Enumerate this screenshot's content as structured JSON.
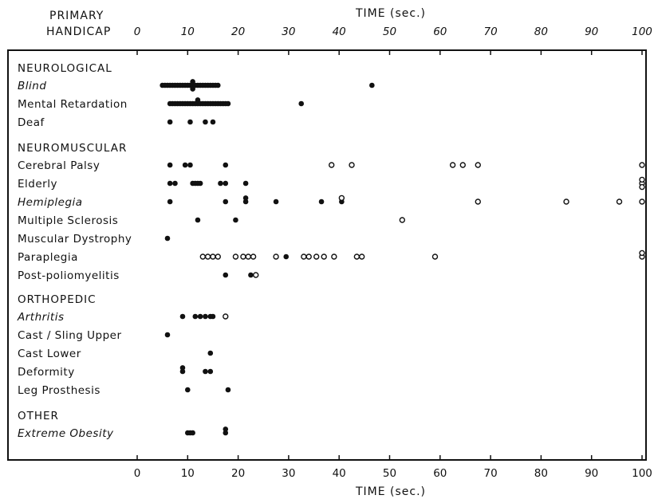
{
  "page": {
    "background": "#ffffff",
    "ink": "#111111"
  },
  "header": {
    "title_line1": "PRIMARY",
    "title_line2": "HANDICAP"
  },
  "chart_data": {
    "type": "scatter",
    "xlabel": "TIME (sec.)",
    "xlim": [
      0,
      100
    ],
    "xticks": [
      0,
      10,
      20,
      30,
      40,
      50,
      60,
      70,
      80,
      90,
      100
    ],
    "legend": "none",
    "grid": false,
    "marker_colors": {
      "filled": "#111111",
      "open": "#ffffff"
    },
    "groups": [
      {
        "name": "NEUROLOGICAL",
        "rows": [
          {
            "label": "Blind",
            "italic": true,
            "filled": [
              5,
              5.5,
              6,
              6.5,
              7,
              7.5,
              8,
              8.5,
              9,
              9.5,
              10,
              10.5,
              11,
              11,
              11,
              11.5,
              12,
              12.5,
              13,
              13.5,
              14,
              14.5,
              15,
              15.5,
              16,
              46.5
            ],
            "open": []
          },
          {
            "label": "Mental Retardation",
            "italic": false,
            "filled": [
              6.5,
              7,
              7.5,
              8,
              8.5,
              9,
              9.5,
              10,
              10.5,
              11,
              11.5,
              12,
              12,
              12.5,
              13,
              13.5,
              14,
              14.5,
              15,
              15.5,
              16,
              16.5,
              17,
              17.5,
              18,
              32.5
            ],
            "open": []
          },
          {
            "label": "Deaf",
            "italic": false,
            "filled": [
              6.5,
              10.5,
              13.5,
              15
            ],
            "open": []
          }
        ]
      },
      {
        "name": "NEUROMUSCULAR",
        "rows": [
          {
            "label": "Cerebral Palsy",
            "italic": false,
            "filled": [
              6.5,
              9.5,
              10.5,
              17.5
            ],
            "open": [
              38.5,
              42.5,
              62.5,
              64.5,
              67.5,
              100
            ]
          },
          {
            "label": "Elderly",
            "italic": false,
            "filled": [
              6.5,
              7.5,
              11,
              11.5,
              12,
              12.5,
              16.5,
              17.5,
              21.5
            ],
            "open": [
              100,
              100,
              100
            ]
          },
          {
            "label": "Hemiplegia",
            "italic": true,
            "filled": [
              6.5,
              17.5,
              21.5,
              21.5,
              27.5,
              36.5,
              40.5
            ],
            "open": [
              40.5,
              67.5,
              85,
              95.5,
              100
            ]
          },
          {
            "label": "Multiple Sclerosis",
            "italic": false,
            "filled": [
              12,
              19.5
            ],
            "open": [
              52.5
            ]
          },
          {
            "label": "Muscular Dystrophy",
            "italic": false,
            "filled": [
              6
            ],
            "open": []
          },
          {
            "label": "Paraplegia",
            "italic": false,
            "filled": [
              29.5
            ],
            "open": [
              13,
              14,
              15,
              16,
              19.5,
              21,
              22,
              23,
              27.5,
              33,
              34,
              35.5,
              37,
              39,
              43.5,
              44.5,
              59,
              100,
              100
            ]
          },
          {
            "label": "Post-poliomyelitis",
            "italic": false,
            "filled": [
              17.5,
              22.5
            ],
            "open": [
              23.5
            ]
          }
        ]
      },
      {
        "name": "ORTHOPEDIC",
        "rows": [
          {
            "label": "Arthritis",
            "italic": true,
            "filled": [
              9,
              11.5,
              12.5,
              13.5,
              14.5,
              15
            ],
            "open": [
              17.5
            ]
          },
          {
            "label": "Cast / Sling Upper",
            "italic": false,
            "filled": [
              6
            ],
            "open": []
          },
          {
            "label": "Cast Lower",
            "italic": false,
            "filled": [
              14.5
            ],
            "open": []
          },
          {
            "label": "Deformity",
            "italic": false,
            "filled": [
              9,
              9,
              13.5,
              14.5
            ],
            "open": []
          },
          {
            "label": "Leg Prosthesis",
            "italic": false,
            "filled": [
              10,
              18
            ],
            "open": []
          }
        ]
      },
      {
        "name": "OTHER",
        "rows": [
          {
            "label": "Extreme Obesity",
            "italic": true,
            "filled": [
              10,
              10.5,
              11,
              17.5,
              17.5
            ],
            "open": []
          }
        ]
      }
    ]
  }
}
